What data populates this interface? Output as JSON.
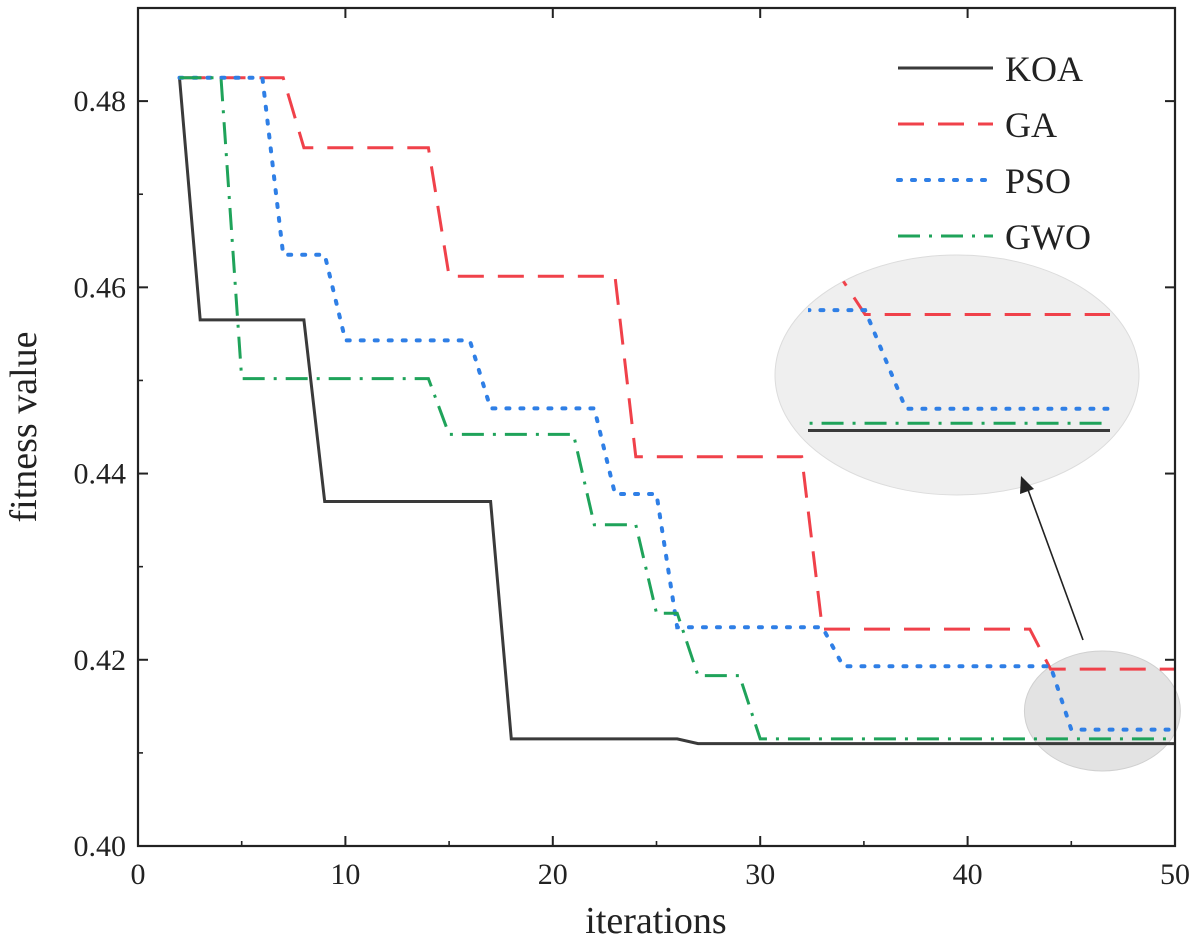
{
  "chart_data": {
    "type": "line",
    "xlabel": "iterations",
    "ylabel": "fitness value",
    "xlim": [
      0,
      50
    ],
    "ylim": [
      0.4,
      0.49
    ],
    "xticks": [
      0,
      10,
      20,
      30,
      40,
      50
    ],
    "yticks": [
      0.4,
      0.42,
      0.44,
      0.46,
      0.48
    ],
    "xtick_labels": [
      "0",
      "10",
      "20",
      "30",
      "40",
      "50"
    ],
    "ytick_labels": [
      "0.40",
      "0.42",
      "0.44",
      "0.46",
      "0.48"
    ],
    "grid": false,
    "legend": "top-right",
    "inset_zoom": true,
    "series": [
      {
        "name": "KOA",
        "color": "#3a3a3a",
        "dash": "solid",
        "x": [
          2,
          3,
          8,
          9,
          17,
          18,
          26,
          27,
          50
        ],
        "y": [
          0.4825,
          0.4565,
          0.4565,
          0.437,
          0.437,
          0.4115,
          0.4115,
          0.411,
          0.411
        ]
      },
      {
        "name": "GA",
        "color": "#f0414a",
        "dash": "dashed",
        "x": [
          2,
          7,
          8,
          14,
          15,
          23,
          24,
          32,
          33,
          43,
          44,
          50
        ],
        "y": [
          0.4825,
          0.4825,
          0.475,
          0.475,
          0.4612,
          0.4612,
          0.4418,
          0.4418,
          0.4233,
          0.4233,
          0.419,
          0.419
        ]
      },
      {
        "name": "PSO",
        "color": "#2f7fe6",
        "dash": "dotted",
        "x": [
          2,
          6,
          7,
          9,
          10,
          16,
          17,
          22,
          23,
          25,
          26,
          33,
          34,
          44,
          45,
          50
        ],
        "y": [
          0.4825,
          0.4825,
          0.4635,
          0.4635,
          0.4543,
          0.4543,
          0.447,
          0.447,
          0.4378,
          0.4378,
          0.4235,
          0.4235,
          0.4193,
          0.4193,
          0.4125,
          0.4125
        ]
      },
      {
        "name": "GWO",
        "color": "#1fa35a",
        "dash": "dashdot",
        "x": [
          2,
          4,
          5,
          14,
          15,
          21,
          22,
          24,
          25,
          26,
          27,
          29,
          30,
          50
        ],
        "y": [
          0.4825,
          0.4825,
          0.4502,
          0.4502,
          0.4442,
          0.4442,
          0.4345,
          0.4345,
          0.425,
          0.425,
          0.4183,
          0.4183,
          0.4115,
          0.4115
        ]
      }
    ]
  }
}
